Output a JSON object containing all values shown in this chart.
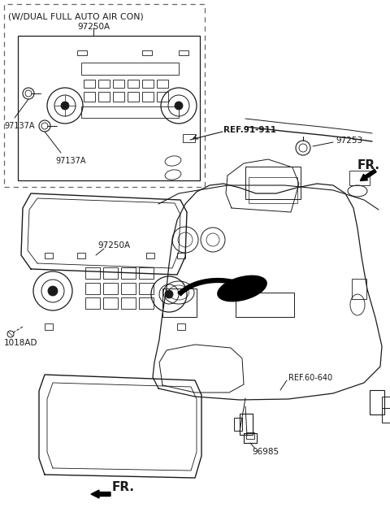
{
  "bg_color": "#ffffff",
  "line_color": "#1a1a1a",
  "labels": {
    "dual_auto": "(W/DUAL FULL AUTO AIR CON)",
    "97250A_top": "97250A",
    "97137A_left": "97137A",
    "97137A_bottom": "97137A",
    "97250A_main": "97250A",
    "1018AD": "1018AD",
    "97253": "97253",
    "REF_91_911": "REF.91-911",
    "REF_60_640": "REF.60-640",
    "96985": "96985",
    "FR_bottom": "FR.",
    "FR_right": "FR."
  },
  "font_size_small": 6.5,
  "font_size_label": 7.5,
  "font_size_ref": 7.0,
  "font_size_FR": 10.0
}
